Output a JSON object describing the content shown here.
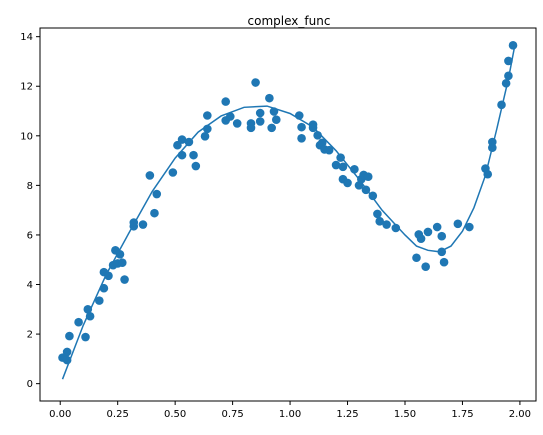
{
  "chart_data": {
    "type": "scatter",
    "title": "complex_func",
    "xlabel": "",
    "ylabel": "",
    "xlim": [
      -0.088,
      2.07
    ],
    "ylim": [
      -0.7,
      14.35
    ],
    "xticks": [
      0.0,
      0.25,
      0.5,
      0.75,
      1.0,
      1.25,
      1.5,
      1.75,
      2.0
    ],
    "xtick_labels": [
      "0.00",
      "0.25",
      "0.50",
      "0.75",
      "1.00",
      "1.25",
      "1.50",
      "1.75",
      "2.00"
    ],
    "yticks": [
      0,
      2,
      4,
      6,
      8,
      10,
      12,
      14
    ],
    "ytick_labels": [
      "0",
      "2",
      "4",
      "6",
      "8",
      "10",
      "12",
      "14"
    ],
    "grid": false,
    "color": "#1f77b4",
    "series": [
      {
        "kind": "scatter",
        "points": [
          [
            0.01,
            1.05
          ],
          [
            0.03,
            1.28
          ],
          [
            0.03,
            0.95
          ],
          [
            0.04,
            1.92
          ],
          [
            0.08,
            2.48
          ],
          [
            0.11,
            1.88
          ],
          [
            0.12,
            3.0
          ],
          [
            0.13,
            2.72
          ],
          [
            0.17,
            3.35
          ],
          [
            0.19,
            3.85
          ],
          [
            0.19,
            4.5
          ],
          [
            0.21,
            4.35
          ],
          [
            0.23,
            4.78
          ],
          [
            0.24,
            5.38
          ],
          [
            0.25,
            4.85
          ],
          [
            0.26,
            5.22
          ],
          [
            0.27,
            4.88
          ],
          [
            0.28,
            4.2
          ],
          [
            0.32,
            6.35
          ],
          [
            0.32,
            6.5
          ],
          [
            0.36,
            6.42
          ],
          [
            0.39,
            8.4
          ],
          [
            0.41,
            6.88
          ],
          [
            0.42,
            7.65
          ],
          [
            0.49,
            8.52
          ],
          [
            0.51,
            9.62
          ],
          [
            0.53,
            9.85
          ],
          [
            0.53,
            9.22
          ],
          [
            0.56,
            9.75
          ],
          [
            0.58,
            9.22
          ],
          [
            0.59,
            8.78
          ],
          [
            0.63,
            9.98
          ],
          [
            0.64,
            10.28
          ],
          [
            0.64,
            10.82
          ],
          [
            0.72,
            11.38
          ],
          [
            0.72,
            10.62
          ],
          [
            0.74,
            10.78
          ],
          [
            0.77,
            10.5
          ],
          [
            0.83,
            10.32
          ],
          [
            0.83,
            10.5
          ],
          [
            0.85,
            12.15
          ],
          [
            0.87,
            10.92
          ],
          [
            0.87,
            10.58
          ],
          [
            0.91,
            11.52
          ],
          [
            0.92,
            10.32
          ],
          [
            0.93,
            10.98
          ],
          [
            0.94,
            10.65
          ],
          [
            1.04,
            10.82
          ],
          [
            1.05,
            10.35
          ],
          [
            1.05,
            9.9
          ],
          [
            1.1,
            10.45
          ],
          [
            1.1,
            10.32
          ],
          [
            1.12,
            10.02
          ],
          [
            1.13,
            9.62
          ],
          [
            1.14,
            9.72
          ],
          [
            1.15,
            9.45
          ],
          [
            1.17,
            9.42
          ],
          [
            1.2,
            8.82
          ],
          [
            1.22,
            9.12
          ],
          [
            1.23,
            8.75
          ],
          [
            1.23,
            8.25
          ],
          [
            1.25,
            8.1
          ],
          [
            1.28,
            8.65
          ],
          [
            1.3,
            8.0
          ],
          [
            1.31,
            8.25
          ],
          [
            1.32,
            8.42
          ],
          [
            1.33,
            7.82
          ],
          [
            1.34,
            8.35
          ],
          [
            1.36,
            7.58
          ],
          [
            1.38,
            6.85
          ],
          [
            1.39,
            6.55
          ],
          [
            1.42,
            6.42
          ],
          [
            1.46,
            6.28
          ],
          [
            1.55,
            5.08
          ],
          [
            1.56,
            6.02
          ],
          [
            1.57,
            5.85
          ],
          [
            1.59,
            4.72
          ],
          [
            1.6,
            6.12
          ],
          [
            1.64,
            6.32
          ],
          [
            1.66,
            5.95
          ],
          [
            1.66,
            5.32
          ],
          [
            1.67,
            4.9
          ],
          [
            1.73,
            6.45
          ],
          [
            1.78,
            6.32
          ],
          [
            1.85,
            8.68
          ],
          [
            1.86,
            8.45
          ],
          [
            1.88,
            9.75
          ],
          [
            1.88,
            9.52
          ],
          [
            1.92,
            11.25
          ],
          [
            1.94,
            12.12
          ],
          [
            1.95,
            12.42
          ],
          [
            1.95,
            13.02
          ],
          [
            1.97,
            13.65
          ]
        ]
      },
      {
        "kind": "line",
        "points": [
          [
            0.01,
            0.18
          ],
          [
            0.1,
            2.35
          ],
          [
            0.2,
            4.4
          ],
          [
            0.3,
            6.1
          ],
          [
            0.4,
            7.75
          ],
          [
            0.5,
            9.1
          ],
          [
            0.6,
            10.15
          ],
          [
            0.7,
            10.8
          ],
          [
            0.8,
            11.15
          ],
          [
            0.9,
            11.2
          ],
          [
            1.0,
            10.9
          ],
          [
            1.1,
            10.35
          ],
          [
            1.2,
            9.4
          ],
          [
            1.3,
            8.25
          ],
          [
            1.4,
            7.0
          ],
          [
            1.5,
            6.0
          ],
          [
            1.55,
            5.55
          ],
          [
            1.6,
            5.38
          ],
          [
            1.65,
            5.32
          ],
          [
            1.7,
            5.55
          ],
          [
            1.75,
            6.15
          ],
          [
            1.8,
            7.1
          ],
          [
            1.85,
            8.4
          ],
          [
            1.9,
            10.3
          ],
          [
            1.95,
            12.3
          ],
          [
            1.98,
            13.75
          ]
        ]
      }
    ]
  }
}
